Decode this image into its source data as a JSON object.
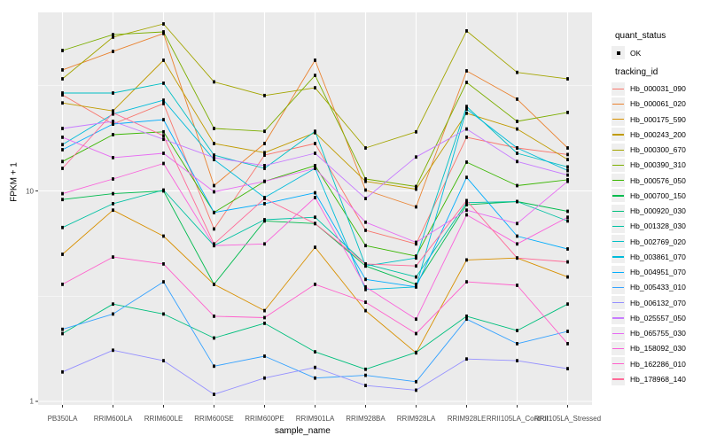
{
  "ui": {
    "xlabel": "sample_name",
    "ylabel": "FPKM + 1",
    "y_tick_labels": [
      "10",
      "1"
    ],
    "legend_quant_title": "quant_status",
    "legend_quant_items": [
      "OK"
    ],
    "legend_tracking_title": "tracking_id"
  },
  "colors": {
    "panel_bg": "#ebebeb",
    "grid_major": "#ffffff",
    "grid_minor": "#f7f7f7",
    "tick_text": "#4d4d4d",
    "tick_mark": "#333333",
    "point": "#000000",
    "legend_key_bg": "#efefef"
  },
  "chart_data": {
    "type": "line",
    "title": "",
    "xlabel": "sample_name",
    "ylabel": "FPKM + 1",
    "y_scale": "log10",
    "y_ticks": [
      10,
      1
    ],
    "y_minor_ticks": [
      31.62,
      3.162
    ],
    "ylim": [
      0.74,
      86
    ],
    "grid": true,
    "legend_position": "right",
    "point_shape": "small black square (quant_status = OK)",
    "categories": [
      "PB350LA",
      "RRIM600LA",
      "RRIM600LE",
      "RRIM600SE",
      "RRIM600PE",
      "RRIM901LA",
      "RRIM928BA",
      "RRIM928LA",
      "RRIM928LE",
      "RRII105LA_Control",
      "RRII105LA_Stressed"
    ],
    "series": [
      {
        "name": "Hb_000031_090",
        "color": "#F8766D",
        "quant_status": "OK",
        "values": [
          28.6,
          20.8,
          26.0,
          6.6,
          14.8,
          16.8,
          6.5,
          5.6,
          18.0,
          16.0,
          14.9
        ]
      },
      {
        "name": "Hb_000061_020",
        "color": "#EA8331",
        "quant_status": "OK",
        "values": [
          37.6,
          46.0,
          56.0,
          10.6,
          16.8,
          41.8,
          10.1,
          8.4,
          37.2,
          27.3,
          16.0
        ]
      },
      {
        "name": "Hb_000175_590",
        "color": "#D89000",
        "quant_status": "OK",
        "values": [
          5.0,
          8.1,
          6.1,
          3.6,
          2.7,
          5.4,
          2.7,
          1.7,
          4.7,
          4.8,
          3.9
        ]
      },
      {
        "name": "Hb_000243_200",
        "color": "#C09B00",
        "quant_status": "OK",
        "values": [
          26.2,
          24.0,
          41.8,
          16.8,
          15.2,
          18.9,
          11.1,
          10.2,
          23.4,
          19.7,
          14.1
        ]
      },
      {
        "name": "Hb_000300_670",
        "color": "#A3A500",
        "quant_status": "OK",
        "values": [
          34.1,
          53.8,
          62.2,
          33.0,
          28.4,
          30.9,
          16.0,
          19.1,
          57.6,
          36.6,
          34.1
        ]
      },
      {
        "name": "Hb_000390_310",
        "color": "#7CAE00",
        "quant_status": "OK",
        "values": [
          46.5,
          55.3,
          57.0,
          19.8,
          19.2,
          35.4,
          11.4,
          10.5,
          32.8,
          21.4,
          23.6
        ]
      },
      {
        "name": "Hb_000576_050",
        "color": "#39B600",
        "quant_status": "OK",
        "values": [
          13.8,
          18.5,
          19.1,
          7.9,
          11.1,
          13.2,
          5.5,
          4.9,
          13.7,
          10.6,
          11.3
        ]
      },
      {
        "name": "Hb_000700_150",
        "color": "#00BB4E",
        "quant_status": "OK",
        "values": [
          9.1,
          9.7,
          10.0,
          3.6,
          7.2,
          7.0,
          4.4,
          3.6,
          8.6,
          8.9,
          8.0
        ]
      },
      {
        "name": "Hb_000920_030",
        "color": "#00BF7D",
        "quant_status": "OK",
        "values": [
          2.1,
          2.9,
          2.6,
          2.0,
          2.35,
          1.72,
          1.42,
          1.71,
          2.54,
          2.17,
          2.9
        ]
      },
      {
        "name": "Hb_001328_030",
        "color": "#00C1A3",
        "quant_status": "OK",
        "values": [
          6.7,
          8.7,
          10.1,
          5.5,
          7.3,
          7.5,
          4.5,
          3.9,
          8.8,
          8.9,
          7.2
        ]
      },
      {
        "name": "Hb_002769_020",
        "color": "#00BFC4",
        "quant_status": "OK",
        "values": [
          29.2,
          29.2,
          32.5,
          14.8,
          12.8,
          19.2,
          4.4,
          4.8,
          25.2,
          15.1,
          13.0
        ]
      },
      {
        "name": "Hb_003861_070",
        "color": "#00BBDA",
        "quant_status": "OK",
        "values": [
          16.6,
          23.2,
          27.0,
          14.1,
          9.3,
          12.8,
          3.4,
          3.5,
          24.5,
          16.0,
          12.5
        ]
      },
      {
        "name": "Hb_004951_070",
        "color": "#00ACFC",
        "quant_status": "OK",
        "values": [
          15.7,
          20.8,
          21.8,
          7.9,
          8.7,
          9.8,
          3.8,
          3.5,
          11.6,
          6.1,
          5.3
        ]
      },
      {
        "name": "Hb_005433_010",
        "color": "#35A2FF",
        "quant_status": "OK",
        "values": [
          2.2,
          2.6,
          3.7,
          1.47,
          1.64,
          1.29,
          1.33,
          1.24,
          2.46,
          1.88,
          2.15
        ]
      },
      {
        "name": "Hb_006132_070",
        "color": "#9590FF",
        "quant_status": "OK",
        "values": [
          1.38,
          1.75,
          1.56,
          1.08,
          1.29,
          1.45,
          1.19,
          1.13,
          1.59,
          1.56,
          1.43
        ]
      },
      {
        "name": "Hb_025557_050",
        "color": "#C77CFF",
        "quant_status": "OK",
        "values": [
          19.8,
          21.4,
          17.6,
          14.4,
          13.2,
          15.1,
          9.2,
          14.5,
          19.7,
          13.8,
          11.9
        ]
      },
      {
        "name": "Hb_065755_030",
        "color": "#E76BF3",
        "quant_status": "OK",
        "values": [
          18.0,
          14.4,
          15.1,
          9.9,
          11.1,
          12.8,
          7.1,
          5.7,
          8.1,
          7.0,
          11.1
        ]
      },
      {
        "name": "Hb_158092_030",
        "color": "#FA62DB",
        "quant_status": "OK",
        "values": [
          9.7,
          11.4,
          13.5,
          5.5,
          5.6,
          9.3,
          3.5,
          2.46,
          7.7,
          5.6,
          7.5
        ]
      },
      {
        "name": "Hb_162286_010",
        "color": "#FF61CC",
        "quant_status": "OK",
        "values": [
          3.6,
          4.85,
          4.5,
          2.54,
          2.5,
          3.6,
          2.96,
          2.1,
          3.7,
          3.56,
          1.88
        ]
      },
      {
        "name": "Hb_178968_140",
        "color": "#FF6A98",
        "quant_status": "OK",
        "values": [
          12.8,
          23.5,
          18.3,
          5.6,
          9.2,
          7.0,
          4.5,
          4.4,
          9.0,
          4.8,
          4.6
        ]
      }
    ]
  }
}
